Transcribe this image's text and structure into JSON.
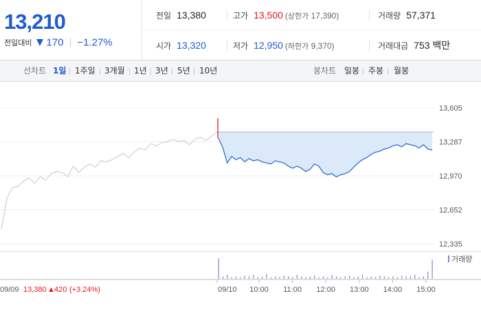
{
  "summary": {
    "price": "13,210",
    "change_label": "전일대비",
    "change_value": "170",
    "change_rate": "−1.27%",
    "colors": {
      "up": "#e4161c",
      "down": "#1f5ad3"
    }
  },
  "stats": {
    "prev_close": {
      "label": "전일",
      "value": "13,380"
    },
    "high": {
      "label": "고가",
      "value": "13,500",
      "sub_label": "상한가",
      "sub_value": "17,390"
    },
    "volume": {
      "label": "거래량",
      "value": "57,371"
    },
    "open": {
      "label": "시가",
      "value": "13,320"
    },
    "low": {
      "label": "저가",
      "value": "12,950",
      "sub_label": "하한가",
      "sub_value": "9,370"
    },
    "amount": {
      "label": "거래대금",
      "value": "753 백만"
    }
  },
  "line_tabs": {
    "title": "선차트",
    "items": [
      "1일",
      "1주일",
      "3개월",
      "1년",
      "3년",
      "5년",
      "10년"
    ],
    "active": "1일"
  },
  "candle_tabs": {
    "title": "봉차트",
    "items": [
      "일봉",
      "주봉",
      "월봉"
    ]
  },
  "chart_data": {
    "type": "line",
    "price_axis": {
      "ticks": [
        "13,605",
        "13,287",
        "12,970",
        "12,652",
        "12,335"
      ],
      "ylim": [
        12335,
        13605
      ]
    },
    "volume_legend": "거래량",
    "colors": {
      "prev_day": "#cfcfcf",
      "today": "#2f6fd1",
      "fill": "#dce9f8",
      "open_tick": "#e4161c",
      "volume": "#8d80c7",
      "ref_line": "#777777"
    },
    "reference_price": 13380,
    "prev_day": {
      "date_label": "09/09",
      "close_text": "13,380",
      "change_text": "420",
      "rate_text": "(+3.24%)",
      "values": [
        12470,
        12760,
        12860,
        12870,
        12920,
        12950,
        12900,
        12960,
        12930,
        12990,
        13010,
        13000,
        12960,
        13060,
        13000,
        13050,
        13080,
        13050,
        13110,
        13100,
        13120,
        13150,
        13180,
        13140,
        13190,
        13230,
        13210,
        13270,
        13250,
        13280,
        13290,
        13310,
        13290,
        13300,
        13260,
        13310,
        13330,
        13300,
        13340,
        13380
      ]
    },
    "today": {
      "date_label": "09/10",
      "time_ticks": [
        "10:00",
        "11:00",
        "12:00",
        "13:00",
        "14:00",
        "15:00"
      ],
      "values": [
        13320,
        13230,
        13090,
        13150,
        13120,
        13140,
        13100,
        13130,
        13110,
        13120,
        13100,
        13090,
        13080,
        13110,
        13100,
        13090,
        13060,
        13040,
        13060,
        13040,
        13010,
        13030,
        13080,
        13060,
        13000,
        12980,
        12990,
        12960,
        12980,
        12990,
        13010,
        13050,
        13090,
        13120,
        13140,
        13170,
        13190,
        13200,
        13220,
        13230,
        13250,
        13260,
        13240,
        13270,
        13260,
        13250,
        13230,
        13260,
        13220,
        13210
      ]
    },
    "volume": {
      "values": [
        26,
        3,
        5,
        2,
        3,
        2,
        4,
        3,
        5,
        2,
        3,
        6,
        2,
        3,
        2,
        4,
        3,
        2,
        5,
        3,
        2,
        3,
        4,
        2,
        3,
        2,
        5,
        3,
        2,
        3,
        4,
        2,
        3,
        5,
        2,
        3,
        2,
        4,
        3,
        2,
        3,
        2,
        4,
        3,
        3,
        5,
        2,
        3,
        9,
        24
      ]
    }
  }
}
